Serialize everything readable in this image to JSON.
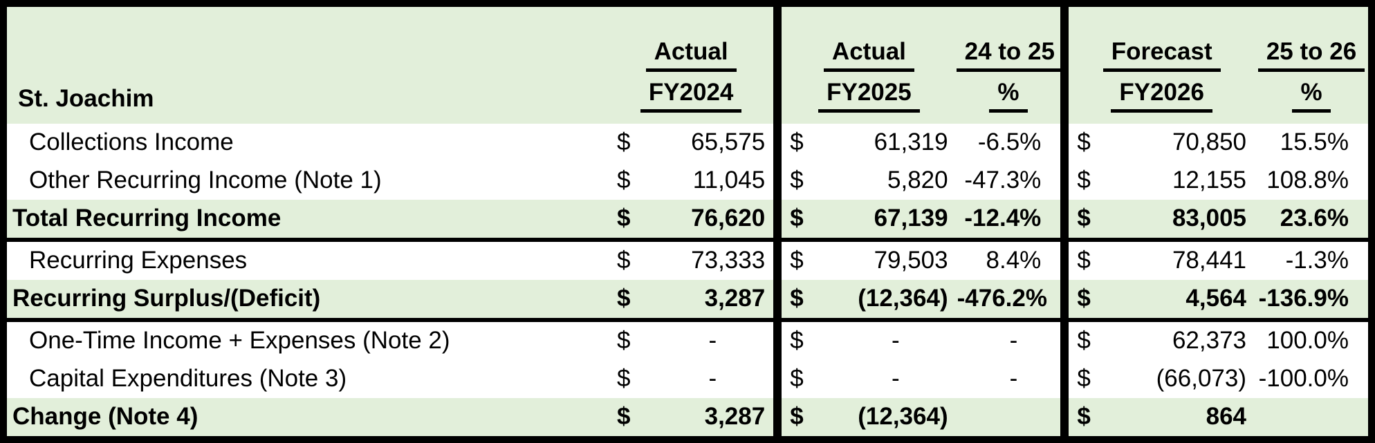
{
  "title": "St. Joachim",
  "currency_symbol": "$",
  "colors": {
    "band_green": "#E2EFDA",
    "border": "#000000",
    "text": "#000000",
    "row_white": "#FFFFFF"
  },
  "columns": {
    "group1": {
      "line1": "Actual",
      "line2": "FY2024"
    },
    "group2": {
      "line1": "Actual",
      "line2": "FY2025"
    },
    "group3": {
      "line1": "24 to 25",
      "line2": "%"
    },
    "group4": {
      "line1": "Forecast",
      "line2": "FY2026"
    },
    "group5": {
      "line1": "25 to 26",
      "line2": "%"
    }
  },
  "rows": [
    {
      "label": "Collections Income",
      "fy2024": "65,575",
      "fy2025": "61,319",
      "pct_24_25": "-6.5%",
      "fy2026": "70,850",
      "pct_25_26": "15.5%"
    },
    {
      "label": "Other Recurring Income (Note 1)",
      "fy2024": "11,045",
      "fy2025": "5,820",
      "pct_24_25": "-47.3%",
      "fy2026": "12,155",
      "pct_25_26": "108.8%"
    },
    {
      "label": "Total Recurring Income",
      "fy2024": "76,620",
      "fy2025": "67,139",
      "pct_24_25": "-12.4%",
      "fy2026": "83,005",
      "pct_25_26": "23.6%"
    },
    {
      "label": "Recurring Expenses",
      "fy2024": "73,333",
      "fy2025": "79,503",
      "pct_24_25": "8.4%",
      "fy2026": "78,441",
      "pct_25_26": "-1.3%"
    },
    {
      "label": "Recurring Surplus/(Deficit)",
      "fy2024": "3,287",
      "fy2025": "(12,364)",
      "pct_24_25": "-476.2%",
      "fy2026": "4,564",
      "pct_25_26": "-136.9%"
    },
    {
      "label": "One-Time Income + Expenses (Note 2)",
      "fy2024": "-",
      "fy2025": "-",
      "pct_24_25": "-",
      "fy2026": "62,373",
      "pct_25_26": "100.0%"
    },
    {
      "label": "Capital Expenditures (Note 3)",
      "fy2024": "-",
      "fy2025": "-",
      "pct_24_25": "-",
      "fy2026": "(66,073)",
      "pct_25_26": "-100.0%"
    },
    {
      "label": "Change (Note 4)",
      "fy2024": "3,287",
      "fy2025": "(12,364)",
      "pct_24_25": "",
      "fy2026": "864",
      "pct_25_26": ""
    }
  ]
}
